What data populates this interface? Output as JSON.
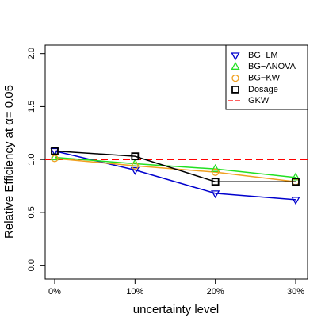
{
  "chart_data": {
    "type": "line",
    "x_label": "uncertainty level",
    "y_label": "Relative Efficiency at α= 0.05",
    "categories": [
      "0%",
      "10%",
      "20%",
      "30%"
    ],
    "ylim": [
      -0.13,
      2.08
    ],
    "yticks": [
      {
        "value": 0,
        "label": "0.0"
      },
      {
        "value": 0.5,
        "label": "0.5"
      },
      {
        "value": 1,
        "label": "1.0"
      },
      {
        "value": 1.5,
        "label": "1.5"
      },
      {
        "value": 2,
        "label": "2.0"
      }
    ],
    "series": [
      {
        "name": "BG−LM",
        "color": "#0000cd",
        "marker": "triangle-down",
        "values": [
          1.08,
          0.9,
          0.68,
          0.62
        ]
      },
      {
        "name": "BG−ANOVA",
        "color": "#22e022",
        "marker": "triangle-up",
        "values": [
          1.02,
          0.96,
          0.91,
          0.83
        ]
      },
      {
        "name": "BG−KW",
        "color": "#f0a020",
        "marker": "circle",
        "values": [
          1.01,
          0.94,
          0.88,
          0.79
        ]
      },
      {
        "name": "Dosage",
        "color": "#000000",
        "marker": "square",
        "values": [
          1.08,
          1.03,
          0.79,
          0.79
        ]
      }
    ],
    "reference_line": {
      "name": "GKW",
      "color": "#ff0000",
      "value": 1
    },
    "legend": "top-right"
  }
}
